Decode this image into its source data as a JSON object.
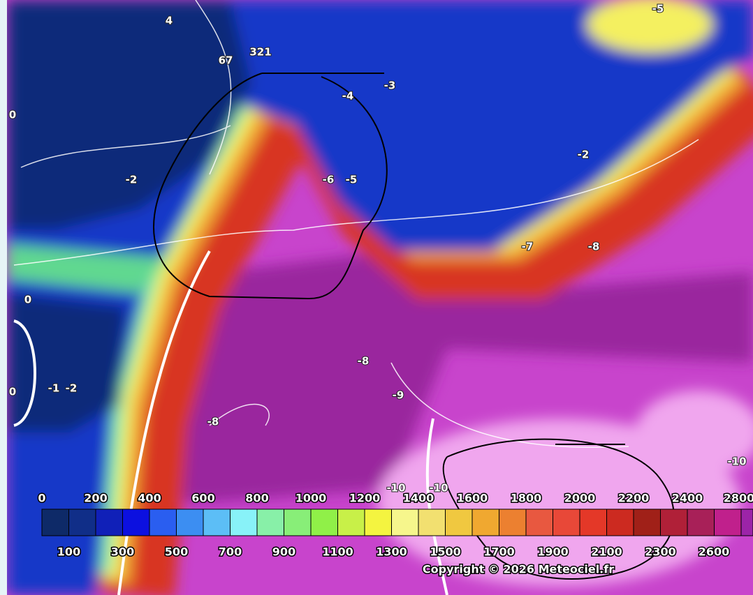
{
  "colorbar": {
    "colors": [
      "#0e2a68",
      "#102e88",
      "#1020b8",
      "#0c10e0",
      "#2a5ef0",
      "#3c8ef2",
      "#5cbef6",
      "#88f2f8",
      "#88f0a8",
      "#88ee78",
      "#90f048",
      "#c8f048",
      "#f4f440",
      "#f6f68c",
      "#f2e070",
      "#f0c840",
      "#f0a830",
      "#ec8030",
      "#e85840",
      "#e84838",
      "#e43828",
      "#cc2a20",
      "#a02018",
      "#b02038",
      "#a82058",
      "#c0208c",
      "#9c24a8"
    ],
    "top_labels": [
      0,
      200,
      400,
      600,
      800,
      1000,
      1200,
      1400,
      1600,
      1800,
      2000,
      2200,
      2400,
      2800
    ],
    "bottom_labels": [
      100,
      300,
      500,
      700,
      900,
      1100,
      1300,
      1500,
      1700,
      1900,
      2100,
      2300,
      2600
    ]
  },
  "contour_labels": [
    "4",
    "67",
    "321",
    "-5",
    "-3",
    "-4",
    "0",
    "-2",
    "-6",
    "-5",
    "-2",
    "-7",
    "-8",
    "0",
    "0",
    "-1",
    "-2",
    "-8",
    "-9",
    "-8",
    "-10",
    "-10",
    "-10"
  ],
  "copyright": "Copyright © 2026 Meteociel.fr"
}
